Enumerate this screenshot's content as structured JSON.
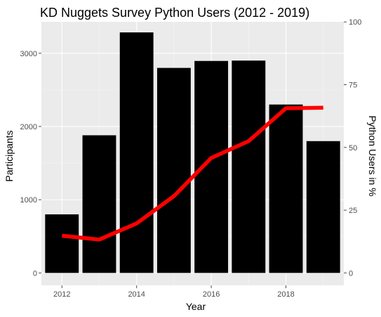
{
  "chart_data": {
    "type": "bar",
    "title": "KD Nuggets Survey Python Users (2012 - 2019)",
    "xlabel": "Year",
    "ylabel": "Participants",
    "y2label": "Python Users in %",
    "x": [
      2012,
      2013,
      2014,
      2015,
      2016,
      2017,
      2018,
      2019
    ],
    "xlim": [
      2011.45,
      2019.55
    ],
    "ylim": [
      -170,
      3430
    ],
    "y2lim": [
      -4.96,
      100.06
    ],
    "x_ticks": [
      2012,
      2014,
      2016,
      2018
    ],
    "x_tick_labels": [
      "2012",
      "2014",
      "2016",
      "2018"
    ],
    "y_ticks": [
      0,
      1000,
      2000,
      3000
    ],
    "y_tick_labels": [
      "0",
      "1000",
      "2000",
      "3000"
    ],
    "y2_ticks": [
      0,
      25,
      50,
      75,
      100
    ],
    "y2_tick_labels": [
      "0",
      "25",
      "50",
      "75",
      "100"
    ],
    "grid": true,
    "series": [
      {
        "type": "bar",
        "axis": "left",
        "color": "#000000",
        "values": [
          800,
          1880,
          3285,
          2800,
          2895,
          2900,
          2300,
          1800
        ]
      },
      {
        "type": "line",
        "axis": "right",
        "color": "#ff0000",
        "values": [
          14.8,
          13.3,
          19.7,
          30.6,
          45.8,
          52.5,
          65.6,
          65.8
        ]
      }
    ],
    "colors": {
      "panel": "#ebebeb",
      "grid_major": "#ffffff",
      "grid_minor": "#f5f5f5",
      "tick": "#4d4d4d"
    }
  }
}
